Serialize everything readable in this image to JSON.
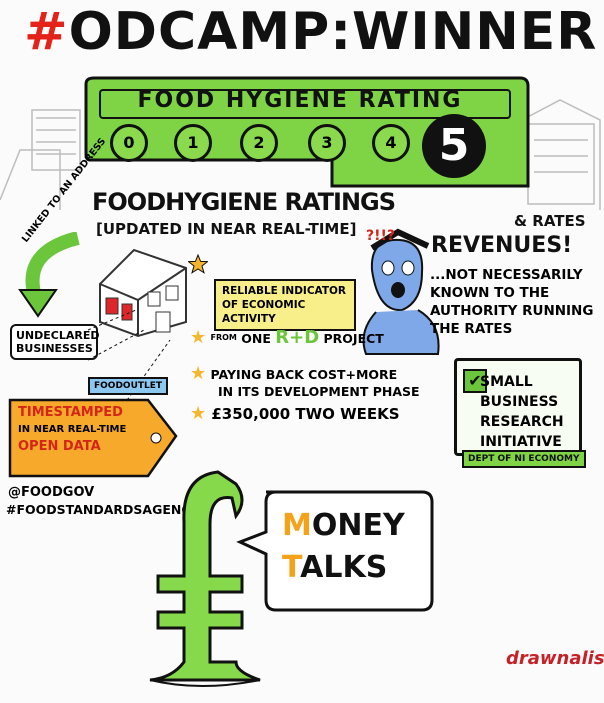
{
  "title": {
    "hash": "#",
    "text": "ODCAMP:WINNER"
  },
  "rating_board": {
    "heading": "FOOD HYGIENE RATING",
    "ratings": [
      "0",
      "1",
      "2",
      "3",
      "4"
    ],
    "selected": "5"
  },
  "subheading": "FOODHYGIENE RATINGS",
  "updated": "[UPDATED IN NEAR REAL-TIME]",
  "linked": "LINKED TO AN ADDRESS",
  "reliable": "RELIABLE INDICATOR OF ECONOMIC ACTIVITY",
  "exclaim": "?!!?",
  "rates": {
    "amp": "& RATES",
    "revenues": "REVENUES!",
    "note": "...NOT NECESSARILY KNOWN TO THE AUTHORITY RUNNING THE RATES"
  },
  "undeclared": "UNDECLARED BUSINESSES",
  "tag": {
    "outlet": "FOODOUTLET",
    "text_lines": [
      "TIMESTAMPED",
      "IN NEAR REAL-TIME",
      "OPEN DATA"
    ]
  },
  "bullets": {
    "b1_small": "FROM",
    "b1_one": "ONE",
    "b1_rd": "R+D",
    "b1_project": "PROJECT",
    "b2_line1": "PAYING BACK COST+MORE",
    "b2_line2": "IN ITS DEVELOPMENT PHASE",
    "b3": "£350,000 TWO WEEKS"
  },
  "sbri": {
    "lines": [
      "SMALL",
      "BUSINESS",
      "RESEARCH",
      "INITIATIVE"
    ],
    "dept": "DEPT OF NI ECONOMY"
  },
  "social": {
    "handle": "@FOODGOV",
    "hashtag": "#FOODSTANDARDSAGENCY"
  },
  "money": {
    "line1_initial": "M",
    "line1_rest": "ONEY",
    "line2_initial": "T",
    "line2_rest": "ALKS"
  },
  "brand": "drawnalism"
}
